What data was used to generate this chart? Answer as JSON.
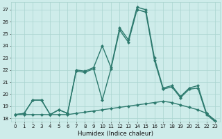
{
  "xlabel": "Humidex (Indice chaleur)",
  "x": [
    0,
    1,
    2,
    3,
    4,
    5,
    6,
    7,
    8,
    9,
    10,
    11,
    12,
    13,
    14,
    15,
    16,
    17,
    18,
    19,
    20,
    21,
    22,
    23
  ],
  "line_peak": [
    18.3,
    18.4,
    19.5,
    19.5,
    18.3,
    18.7,
    18.4,
    22.0,
    21.9,
    22.2,
    24.0,
    22.2,
    25.5,
    24.5,
    27.2,
    27.0,
    23.0,
    20.5,
    20.7,
    19.8,
    20.5,
    20.7,
    18.4,
    17.8
  ],
  "line_mid": [
    18.3,
    18.4,
    19.5,
    19.5,
    18.3,
    18.7,
    18.4,
    21.9,
    21.8,
    22.1,
    19.5,
    22.1,
    25.3,
    24.3,
    27.0,
    26.8,
    22.8,
    20.4,
    20.6,
    19.7,
    20.4,
    20.5,
    18.3,
    17.7
  ],
  "line_flat": [
    18.3,
    18.3,
    18.3,
    18.3,
    18.3,
    18.3,
    18.3,
    18.4,
    18.5,
    18.6,
    18.7,
    18.8,
    18.9,
    19.0,
    19.1,
    19.2,
    19.3,
    19.4,
    19.3,
    19.1,
    18.9,
    18.7,
    18.4,
    17.8
  ],
  "line_color": "#2d7a6e",
  "bg_color": "#ceecea",
  "grid_color": "#aad4cf",
  "yticks": [
    18,
    19,
    20,
    21,
    22,
    23,
    24,
    25,
    26,
    27
  ],
  "xticks": [
    0,
    1,
    2,
    3,
    4,
    5,
    6,
    7,
    8,
    9,
    10,
    11,
    12,
    13,
    14,
    15,
    16,
    17,
    18,
    19,
    20,
    21,
    22,
    23
  ],
  "ylim_min": 17.7,
  "ylim_max": 27.6,
  "xlim_min": -0.5,
  "xlim_max": 23.5,
  "markersize": 2.2,
  "linewidth": 1.0,
  "tick_fontsize": 5.0,
  "xlabel_fontsize": 6.2
}
